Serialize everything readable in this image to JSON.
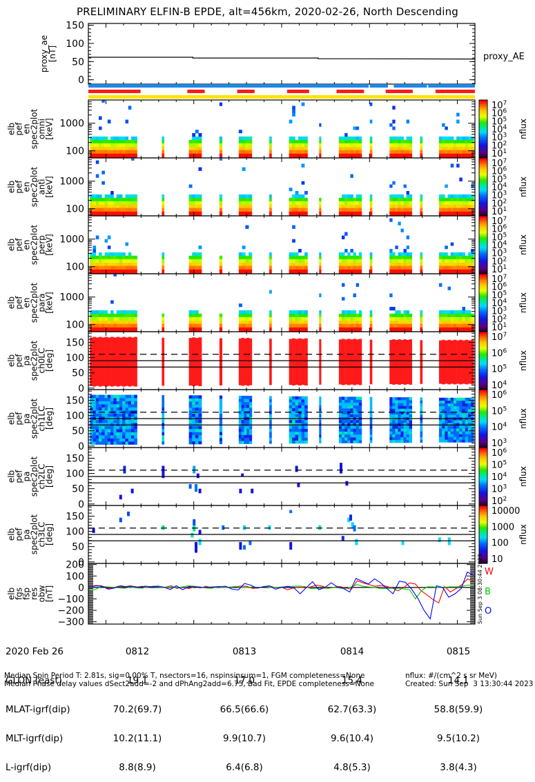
{
  "title": "PRELIMINARY ELFIN-B EPDE, alt=456km, 2020-02-26, North Descending",
  "colors": {
    "blue_bar": "#1e88e5",
    "red_bar": "#ff1a1a",
    "yellow_bar": "#ffe500",
    "fgs_W": "#ff0000",
    "fgs_B": "#00cc00",
    "fgs_O": "#0000ff"
  },
  "chart_data": [
    {
      "id": "proxy_ae",
      "type": "line",
      "ylabel": "proxy_ae [nT]",
      "legend": "proxy_AE",
      "ylim": [
        -12,
        155
      ],
      "yticks": [
        "150",
        "100",
        "50",
        "0"
      ],
      "x_minutes": [
        0,
        2.0,
        2.0,
        4.4,
        4.4,
        7.4
      ],
      "y": [
        62,
        62,
        60,
        60,
        58,
        57
      ]
    },
    {
      "id": "status_bars",
      "type": "bar",
      "rows": [
        {
          "name": "blue",
          "segments": [
            [
              0.0,
              0.725
            ],
            [
              0.728,
              0.775
            ],
            [
              0.79,
              0.876
            ],
            [
              0.879,
              1.0
            ]
          ]
        },
        {
          "name": "red",
          "segments": [
            [
              0.0,
              0.135
            ],
            [
              0.256,
              0.301
            ],
            [
              0.385,
              0.43
            ],
            [
              0.514,
              0.571
            ],
            [
              0.642,
              0.713
            ],
            [
              0.769,
              0.839
            ],
            [
              0.898,
              1.0
            ]
          ]
        },
        {
          "name": "yellow",
          "segments": [
            [
              0.0,
              1.0
            ]
          ]
        }
      ]
    },
    {
      "id": "spec_omni",
      "type": "heatmap",
      "ylabel": "elb\npef\nen\nspec2plot\nomni\n[keV]",
      "yscale": "log",
      "yticks": [
        "1000",
        "100"
      ],
      "colorbar": {
        "label": "nflux",
        "ticks": [
          "10^7",
          "10^6",
          "10^5",
          "10^4",
          "10^3",
          "10^2",
          "10^1"
        ],
        "range_log": [
          1,
          7
        ]
      }
    },
    {
      "id": "spec_anti",
      "type": "heatmap",
      "ylabel": "elb\npef\nen\nspec2plot\nanti\n[keV]",
      "yscale": "log",
      "yticks": [
        "1000",
        "100"
      ],
      "colorbar": {
        "label": "nflux",
        "ticks": [
          "10^7",
          "10^6",
          "10^5",
          "10^4",
          "10^3",
          "10^2",
          "10^1"
        ],
        "range_log": [
          1,
          7
        ]
      }
    },
    {
      "id": "spec_perp",
      "type": "heatmap",
      "ylabel": "elb\npef\nen\nspec2plot\nperp\n[keV]",
      "yscale": "log",
      "yticks": [
        "1000",
        "100"
      ],
      "colorbar": {
        "label": "nflux",
        "ticks": [
          "10^7",
          "10^6",
          "10^5",
          "10^4",
          "10^3",
          "10^2",
          "10^1"
        ],
        "range_log": [
          1,
          7
        ]
      }
    },
    {
      "id": "spec_para",
      "type": "heatmap",
      "ylabel": "elb\npef\nen\nspec2plot\npara\n[keV]",
      "yscale": "log",
      "yticks": [
        "1000",
        "100"
      ],
      "colorbar": {
        "label": "nflux",
        "ticks": [
          "10^7",
          "10^6",
          "10^5",
          "10^4",
          "10^3",
          "10^2",
          "10^1"
        ],
        "range_log": [
          1,
          7
        ]
      }
    },
    {
      "id": "pa_ch0",
      "type": "heatmap",
      "ylabel": "elb\npef\npa\nspec2plot\nch0LC\n[deg]",
      "ylim": [
        0,
        180
      ],
      "yticks": [
        "150",
        "100",
        "50",
        "0"
      ],
      "reference_lines": {
        "dashed": 111,
        "solid": [
          90,
          69
        ]
      },
      "colorbar": {
        "label": "nflux",
        "ticks": [
          "10^7",
          "10^6",
          "10^5",
          "10^4"
        ],
        "range_log": [
          3.5,
          7
        ]
      }
    },
    {
      "id": "pa_ch1",
      "type": "heatmap",
      "ylabel": "elb\npef\npa\nspec2plot\nch1LC\n[deg]",
      "ylim": [
        0,
        180
      ],
      "yticks": [
        "150",
        "100",
        "50",
        "0"
      ],
      "reference_lines": {
        "dashed": 111,
        "solid": [
          90,
          69
        ]
      },
      "colorbar": {
        "label": "nflux",
        "ticks": [
          "10^6",
          "10^5",
          "10^4",
          "10^3"
        ],
        "range_log": [
          3,
          6.5
        ]
      }
    },
    {
      "id": "pa_ch2",
      "type": "heatmap",
      "ylabel": "elb\npef\npa\nspec2plot\nch2LC\n[deg]",
      "ylim": [
        0,
        180
      ],
      "yticks": [
        "150",
        "100",
        "50",
        "0"
      ],
      "reference_lines": {
        "dashed": 111,
        "solid": [
          90,
          69
        ]
      },
      "colorbar": {
        "label": "nflux",
        "ticks": [
          "10^6",
          "10^5",
          "10^4",
          "10^3",
          "10^2"
        ],
        "range_log": [
          2,
          6
        ]
      }
    },
    {
      "id": "pa_ch3",
      "type": "heatmap",
      "ylabel": "elb\npef\npa\nspec2plot\nch3LC\n[deg]",
      "ylim": [
        0,
        180
      ],
      "yticks": [
        "150",
        "100",
        "50",
        "0"
      ],
      "reference_lines": {
        "dashed": 111,
        "solid": [
          90,
          69
        ]
      },
      "colorbar": {
        "label": "nflux",
        "ticks": [
          "10000",
          "1000",
          "100",
          "10"
        ],
        "range_log": [
          1,
          4.3
        ]
      }
    },
    {
      "id": "fgs_res_obw",
      "type": "line",
      "ylabel": "elb\nfgs\nfsp\nres\nobw\n[nT]",
      "ylim": [
        -320,
        210
      ],
      "yticks": [
        "200",
        "100",
        "0",
        "-100",
        "-200",
        "-300"
      ],
      "legend": [
        "W",
        "B",
        "O"
      ],
      "series": [
        {
          "name": "W",
          "color": "#ff0000",
          "y": [
            5,
            18,
            14,
            -6,
            -5,
            12,
            6,
            15,
            2,
            10,
            0,
            12,
            4,
            2,
            14,
            -9,
            6,
            -10,
            5,
            -4,
            10,
            -3,
            5,
            -2,
            3,
            5,
            12,
            10,
            -8,
            -5,
            7,
            12,
            -3,
            2,
            -20,
            -5,
            2,
            -4,
            5,
            20,
            10,
            -8,
            2,
            8,
            -5,
            -16,
            58,
            40,
            25,
            10,
            18,
            10,
            -5,
            -30,
            0,
            40,
            30,
            -30,
            -65,
            -105,
            -135,
            10,
            -40,
            -10,
            25,
            75,
            50
          ]
        },
        {
          "name": "B",
          "color": "#00cc00",
          "y": [
            -20,
            -18,
            10,
            5,
            2,
            -4,
            -6,
            2,
            -4,
            -6,
            5,
            10,
            2,
            0,
            4,
            -2,
            5,
            15,
            10,
            5,
            -5,
            -8,
            5,
            0,
            2,
            8,
            0,
            0,
            5,
            -5,
            10,
            0,
            0,
            5,
            5,
            10,
            12,
            8,
            -10,
            -8,
            -5,
            -8,
            0,
            -5,
            -10,
            5,
            25,
            10,
            4,
            0,
            -10,
            -10,
            -8,
            -6,
            -12,
            -20,
            -100,
            -30,
            5,
            5,
            0,
            2,
            5,
            5,
            10,
            20,
            20
          ]
        },
        {
          "name": "O",
          "color": "#0000ff",
          "y": [
            5,
            14,
            10,
            -15,
            -5,
            15,
            5,
            10,
            0,
            12,
            4,
            12,
            2,
            -18,
            15,
            -20,
            8,
            5,
            0,
            2,
            5,
            8,
            10,
            -15,
            -22,
            35,
            20,
            -5,
            5,
            15,
            -15,
            0,
            10,
            -5,
            -55,
            0,
            50,
            -20,
            0,
            40,
            5,
            -10,
            -40,
            78,
            55,
            30,
            75,
            40,
            -10,
            -55,
            55,
            45,
            -15,
            -95,
            -200,
            -275,
            15,
            0,
            -85,
            -55,
            -10,
            135,
            105
          ]
        }
      ]
    }
  ],
  "xaxis": {
    "row_labels": [
      "2020 Feb 26",
      "GLON (east)",
      "MLAT-igrf(dip)",
      "MLT-igrf(dip)",
      "L-igrf(dip)"
    ],
    "columns": [
      {
        "time": "0812",
        "glon": "19.1",
        "mlat": "70.2(69.7)",
        "mlt": "10.2(11.1)",
        "l": "8.8(8.9)"
      },
      {
        "time": "0813",
        "glon": "17.0",
        "mlat": "66.5(66.6)",
        "mlt": "9.9(10.7)",
        "l": "6.4(6.8)"
      },
      {
        "time": "0814",
        "glon": "15.4",
        "mlat": "62.7(63.3)",
        "mlt": "9.6(10.4)",
        "l": "4.8(5.3)"
      },
      {
        "time": "0815",
        "glon": "14.1",
        "mlat": "58.8(59.9)",
        "mlt": "9.5(10.2)",
        "l": "3.8(4.3)"
      }
    ]
  },
  "notes": {
    "line1": "Median Spin Period T: 2.81s, sig=0.00% T, nsectors=16, nspinsinsum=1, FGM completeness=None",
    "line2": "Median Phase delay values dSect2add=-2 and dPhAng2add=6.75, Bad Fit, EPDE completeness=None",
    "units": "nflux: #/(cm^2 s sr MeV)",
    "created": "Created: Sun Sep  3 13:30:44 2023",
    "side_stamp": "Sun Sep  3 08:30:44 2023"
  }
}
